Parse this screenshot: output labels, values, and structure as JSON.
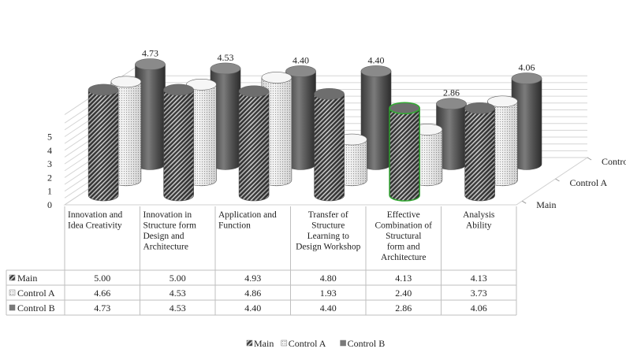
{
  "chart_data": {
    "type": "bar",
    "style": "3d-cylinder",
    "title": "",
    "xlabel": "",
    "ylabel": "",
    "ylim": [
      0,
      5
    ],
    "yticks": [
      "0",
      "1",
      "2",
      "3",
      "4",
      "5"
    ],
    "grid": true,
    "legend_position": "bottom",
    "categories": [
      "Innovation and Idea Creativity",
      "Innovation in Structure form Design and Architecture",
      "Application and Function",
      "Transfer of Structure Learning to Design Workshop",
      "Effective Combination of Structural form and Architecture",
      "Analysis Ability"
    ],
    "series": [
      {
        "name": "Main",
        "values": [
          5.0,
          5.0,
          4.93,
          4.8,
          4.13,
          4.13
        ],
        "labels": [
          "5.00",
          "5.00",
          "4.93",
          "4.80",
          "4.13",
          "4.13"
        ],
        "color": "#444444",
        "pattern": "diagonal-hatch"
      },
      {
        "name": "Control A",
        "values": [
          4.66,
          4.53,
          4.86,
          1.93,
          2.4,
          3.73
        ],
        "labels": [
          "4.66",
          "4.53",
          "4.86",
          "1.93",
          "2.40",
          "3.73"
        ],
        "color": "#e6e6e6",
        "pattern": "dotted"
      },
      {
        "name": "Control B",
        "values": [
          4.73,
          4.53,
          4.4,
          4.4,
          2.86,
          4.06
        ],
        "labels": [
          "4.73",
          "4.53",
          "4.40",
          "4.40",
          "2.86",
          "4.06"
        ],
        "color": "#666666",
        "pattern": "solid"
      }
    ],
    "data_labels_shown": {
      "Control B": [
        "4.73",
        "4.53",
        "4.40",
        "4.40",
        "2.86",
        "4.06"
      ]
    },
    "highlight": {
      "series": "Main",
      "category_index": 4,
      "outline_color": "#33aa33"
    }
  }
}
